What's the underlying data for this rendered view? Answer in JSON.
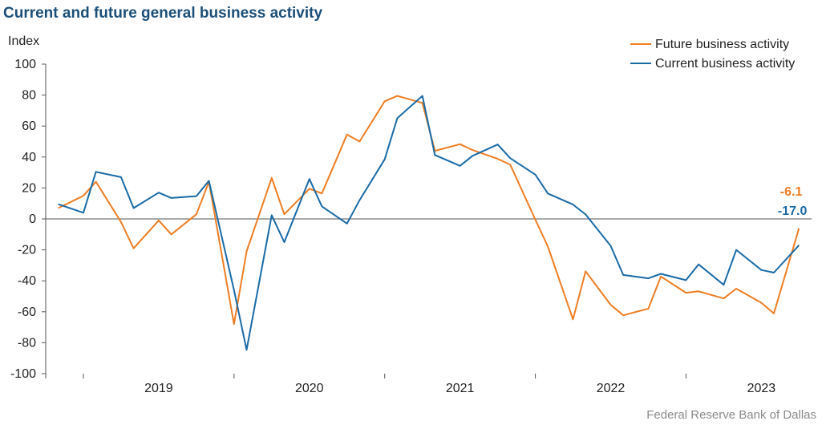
{
  "title": "Current and future general business activity",
  "source": "Federal Reserve Bank of Dallas",
  "chart_data": {
    "type": "line",
    "title": "Current and future general business activity",
    "ylabel": "Index",
    "xlabel": "",
    "ylim": [
      -100,
      100
    ],
    "yticks": [
      100,
      80,
      60,
      40,
      20,
      0,
      -20,
      -40,
      -60,
      -80,
      -100
    ],
    "xlim": [
      "2018-10",
      "2023-11"
    ],
    "year_labels": [
      {
        "label": "2019",
        "x": "2019-07"
      },
      {
        "label": "2020",
        "x": "2020-07"
      },
      {
        "label": "2021",
        "x": "2021-07"
      },
      {
        "label": "2022",
        "x": "2022-07"
      },
      {
        "label": "2023",
        "x": "2023-07"
      }
    ],
    "grid": false,
    "zero_line": true,
    "legend_position": "top-right",
    "x": [
      "2018-11",
      "2019-01",
      "2019-03",
      "2019-05",
      "2019-07",
      "2019-09",
      "2019-11",
      "2020-01",
      "2020-03",
      "2020-05",
      "2020-07",
      "2020-09",
      "2020-11",
      "2021-01",
      "2021-03",
      "2021-05",
      "2021-07",
      "2021-09",
      "2021-11",
      "2022-01",
      "2022-03",
      "2022-05",
      "2022-07",
      "2022-09",
      "2022-11",
      "2023-01",
      "2023-03",
      "2023-05",
      "2023-07",
      "2023-09",
      "2023-11"
    ],
    "series": [
      {
        "name": "Future business activity",
        "color": "#ef7d24",
        "end_label": "-6.1",
        "values": [
          7,
          24,
          -19,
          -10,
          24,
          -68,
          26.5,
          19.5,
          54,
          76,
          79.5,
          44,
          48,
          35,
          -18,
          -65,
          -34,
          -55.5,
          -62,
          -58,
          -37,
          -48,
          -47,
          -51.5,
          -45,
          -54,
          -61,
          -6.1,
          null,
          null,
          null
        ]
      },
      {
        "name": "Current business activity",
        "color": "#1a6aa6",
        "end_label": "-17.0",
        "values": [
          null,
          null,
          null,
          null,
          null,
          null,
          null,
          null,
          null,
          null,
          null,
          null,
          null,
          null,
          null,
          null,
          null,
          null,
          null,
          null,
          null,
          null,
          null,
          null,
          null,
          null,
          null,
          null,
          null,
          null,
          -17.0
        ]
      }
    ]
  }
}
